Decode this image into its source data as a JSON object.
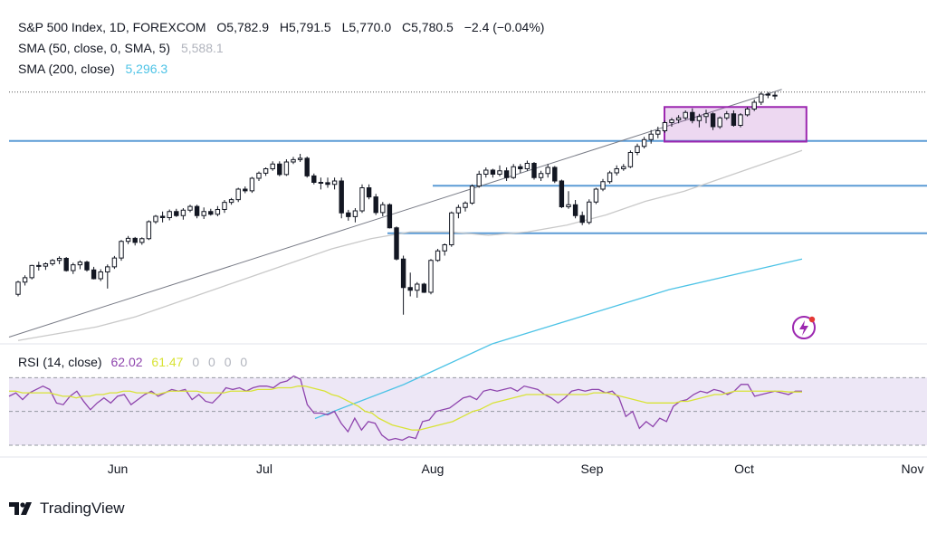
{
  "header": {
    "symbol": "S&P 500 Index, 1D, FOREXCOM",
    "open": "O5,782.9",
    "high": "H5,791.5",
    "low": "L5,770.0",
    "close": "C5,780.5",
    "change": "−2.4 (−0.04%)",
    "sma50_label": "SMA (50, close, 0, SMA, 5)",
    "sma50_value": "5,588.1",
    "sma200_label": "SMA (200, close)",
    "sma200_value": "5,296.3"
  },
  "rsi": {
    "label": "RSI (14, close)",
    "value": "62.02",
    "ma_value": "61.47",
    "extra": [
      "0",
      "0",
      "0",
      "0"
    ]
  },
  "colors": {
    "up": "#ffffff",
    "down": "#131722",
    "sma50": "#c9c9c9",
    "sma200": "#4dc3e6",
    "hlines": "#5b9bd5",
    "box": "#9c27b0",
    "rsi_line": "#8e44ad",
    "rsi_ma": "#d8e336",
    "rsi_band": "#ede7f6"
  },
  "brand": {
    "name": "TradingView",
    "icon": "tradingview-logo-icon"
  },
  "chart_data": {
    "type": "candlestick",
    "timeframe": "1D",
    "x_labels": [
      "Jun",
      "Jul",
      "Aug",
      "Sep",
      "Oct",
      "Nov"
    ],
    "y_range": [
      5050,
      5810
    ],
    "candles": [
      {
        "o": 5196,
        "h": 5236,
        "l": 5190,
        "c": 5232
      },
      {
        "o": 5232,
        "h": 5252,
        "l": 5222,
        "c": 5245
      },
      {
        "o": 5245,
        "h": 5283,
        "l": 5240,
        "c": 5281
      },
      {
        "o": 5281,
        "h": 5292,
        "l": 5266,
        "c": 5279
      },
      {
        "o": 5279,
        "h": 5290,
        "l": 5268,
        "c": 5286
      },
      {
        "o": 5286,
        "h": 5300,
        "l": 5280,
        "c": 5296
      },
      {
        "o": 5296,
        "h": 5308,
        "l": 5285,
        "c": 5302
      },
      {
        "o": 5302,
        "h": 5306,
        "l": 5263,
        "c": 5266
      },
      {
        "o": 5266,
        "h": 5289,
        "l": 5256,
        "c": 5283
      },
      {
        "o": 5283,
        "h": 5296,
        "l": 5270,
        "c": 5291
      },
      {
        "o": 5291,
        "h": 5295,
        "l": 5263,
        "c": 5268
      },
      {
        "o": 5268,
        "h": 5277,
        "l": 5240,
        "c": 5242
      },
      {
        "o": 5242,
        "h": 5270,
        "l": 5235,
        "c": 5262
      },
      {
        "o": 5262,
        "h": 5284,
        "l": 5213,
        "c": 5277
      },
      {
        "o": 5277,
        "h": 5309,
        "l": 5271,
        "c": 5303
      },
      {
        "o": 5303,
        "h": 5356,
        "l": 5295,
        "c": 5352
      },
      {
        "o": 5352,
        "h": 5368,
        "l": 5344,
        "c": 5361
      },
      {
        "o": 5361,
        "h": 5365,
        "l": 5340,
        "c": 5349
      },
      {
        "o": 5349,
        "h": 5364,
        "l": 5342,
        "c": 5360
      },
      {
        "o": 5360,
        "h": 5414,
        "l": 5356,
        "c": 5410
      },
      {
        "o": 5410,
        "h": 5430,
        "l": 5404,
        "c": 5426
      },
      {
        "o": 5426,
        "h": 5440,
        "l": 5408,
        "c": 5422
      },
      {
        "o": 5422,
        "h": 5446,
        "l": 5414,
        "c": 5440
      },
      {
        "o": 5440,
        "h": 5448,
        "l": 5424,
        "c": 5428
      },
      {
        "o": 5428,
        "h": 5450,
        "l": 5416,
        "c": 5444
      },
      {
        "o": 5444,
        "h": 5460,
        "l": 5438,
        "c": 5455
      },
      {
        "o": 5455,
        "h": 5460,
        "l": 5420,
        "c": 5428
      },
      {
        "o": 5428,
        "h": 5452,
        "l": 5418,
        "c": 5440
      },
      {
        "o": 5440,
        "h": 5448,
        "l": 5428,
        "c": 5432
      },
      {
        "o": 5432,
        "h": 5456,
        "l": 5426,
        "c": 5446
      },
      {
        "o": 5446,
        "h": 5474,
        "l": 5436,
        "c": 5467
      },
      {
        "o": 5467,
        "h": 5480,
        "l": 5460,
        "c": 5475
      },
      {
        "o": 5475,
        "h": 5510,
        "l": 5468,
        "c": 5506
      },
      {
        "o": 5506,
        "h": 5514,
        "l": 5494,
        "c": 5501
      },
      {
        "o": 5501,
        "h": 5542,
        "l": 5495,
        "c": 5538
      },
      {
        "o": 5538,
        "h": 5558,
        "l": 5530,
        "c": 5553
      },
      {
        "o": 5553,
        "h": 5570,
        "l": 5545,
        "c": 5566
      },
      {
        "o": 5566,
        "h": 5588,
        "l": 5560,
        "c": 5580
      },
      {
        "o": 5580,
        "h": 5588,
        "l": 5544,
        "c": 5549
      },
      {
        "o": 5549,
        "h": 5594,
        "l": 5545,
        "c": 5586
      },
      {
        "o": 5586,
        "h": 5601,
        "l": 5580,
        "c": 5593
      },
      {
        "o": 5593,
        "h": 5610,
        "l": 5586,
        "c": 5597
      },
      {
        "o": 5597,
        "h": 5602,
        "l": 5540,
        "c": 5545
      },
      {
        "o": 5545,
        "h": 5552,
        "l": 5520,
        "c": 5526
      },
      {
        "o": 5526,
        "h": 5540,
        "l": 5505,
        "c": 5525
      },
      {
        "o": 5525,
        "h": 5540,
        "l": 5510,
        "c": 5520
      },
      {
        "o": 5520,
        "h": 5540,
        "l": 5505,
        "c": 5530
      },
      {
        "o": 5530,
        "h": 5540,
        "l": 5420,
        "c": 5436
      },
      {
        "o": 5436,
        "h": 5445,
        "l": 5413,
        "c": 5425
      },
      {
        "o": 5425,
        "h": 5450,
        "l": 5408,
        "c": 5442
      },
      {
        "o": 5442,
        "h": 5520,
        "l": 5436,
        "c": 5510
      },
      {
        "o": 5510,
        "h": 5520,
        "l": 5476,
        "c": 5483
      },
      {
        "o": 5483,
        "h": 5492,
        "l": 5430,
        "c": 5437
      },
      {
        "o": 5437,
        "h": 5468,
        "l": 5426,
        "c": 5460
      },
      {
        "o": 5460,
        "h": 5464,
        "l": 5390,
        "c": 5392
      },
      {
        "o": 5392,
        "h": 5396,
        "l": 5296,
        "c": 5300
      },
      {
        "o": 5300,
        "h": 5310,
        "l": 5136,
        "c": 5216
      },
      {
        "o": 5216,
        "h": 5260,
        "l": 5190,
        "c": 5208
      },
      {
        "o": 5208,
        "h": 5232,
        "l": 5186,
        "c": 5226
      },
      {
        "o": 5226,
        "h": 5230,
        "l": 5200,
        "c": 5202
      },
      {
        "o": 5202,
        "h": 5300,
        "l": 5196,
        "c": 5296
      },
      {
        "o": 5296,
        "h": 5330,
        "l": 5292,
        "c": 5324
      },
      {
        "o": 5324,
        "h": 5346,
        "l": 5310,
        "c": 5342
      },
      {
        "o": 5342,
        "h": 5440,
        "l": 5336,
        "c": 5436
      },
      {
        "o": 5436,
        "h": 5460,
        "l": 5420,
        "c": 5452
      },
      {
        "o": 5452,
        "h": 5470,
        "l": 5440,
        "c": 5465
      },
      {
        "o": 5465,
        "h": 5520,
        "l": 5460,
        "c": 5515
      },
      {
        "o": 5515,
        "h": 5560,
        "l": 5510,
        "c": 5550
      },
      {
        "o": 5550,
        "h": 5570,
        "l": 5540,
        "c": 5562
      },
      {
        "o": 5562,
        "h": 5566,
        "l": 5540,
        "c": 5550
      },
      {
        "o": 5550,
        "h": 5576,
        "l": 5544,
        "c": 5560
      },
      {
        "o": 5560,
        "h": 5570,
        "l": 5530,
        "c": 5540
      },
      {
        "o": 5540,
        "h": 5580,
        "l": 5536,
        "c": 5572
      },
      {
        "o": 5572,
        "h": 5580,
        "l": 5554,
        "c": 5566
      },
      {
        "o": 5566,
        "h": 5590,
        "l": 5560,
        "c": 5582
      },
      {
        "o": 5582,
        "h": 5586,
        "l": 5534,
        "c": 5540
      },
      {
        "o": 5540,
        "h": 5560,
        "l": 5530,
        "c": 5552
      },
      {
        "o": 5552,
        "h": 5580,
        "l": 5540,
        "c": 5570
      },
      {
        "o": 5570,
        "h": 5574,
        "l": 5524,
        "c": 5530
      },
      {
        "o": 5530,
        "h": 5534,
        "l": 5450,
        "c": 5454
      },
      {
        "o": 5454,
        "h": 5500,
        "l": 5448,
        "c": 5460
      },
      {
        "o": 5460,
        "h": 5474,
        "l": 5420,
        "c": 5428
      },
      {
        "o": 5428,
        "h": 5440,
        "l": 5400,
        "c": 5408
      },
      {
        "o": 5408,
        "h": 5476,
        "l": 5402,
        "c": 5468
      },
      {
        "o": 5468,
        "h": 5510,
        "l": 5462,
        "c": 5506
      },
      {
        "o": 5506,
        "h": 5536,
        "l": 5500,
        "c": 5528
      },
      {
        "o": 5528,
        "h": 5560,
        "l": 5522,
        "c": 5554
      },
      {
        "o": 5554,
        "h": 5576,
        "l": 5546,
        "c": 5566
      },
      {
        "o": 5566,
        "h": 5580,
        "l": 5560,
        "c": 5572
      },
      {
        "o": 5572,
        "h": 5620,
        "l": 5568,
        "c": 5614
      },
      {
        "o": 5614,
        "h": 5640,
        "l": 5606,
        "c": 5632
      },
      {
        "o": 5632,
        "h": 5660,
        "l": 5626,
        "c": 5652
      },
      {
        "o": 5652,
        "h": 5680,
        "l": 5640,
        "c": 5668
      },
      {
        "o": 5668,
        "h": 5690,
        "l": 5656,
        "c": 5678
      },
      {
        "o": 5678,
        "h": 5708,
        "l": 5672,
        "c": 5702
      },
      {
        "o": 5702,
        "h": 5716,
        "l": 5690,
        "c": 5710
      },
      {
        "o": 5710,
        "h": 5724,
        "l": 5700,
        "c": 5716
      },
      {
        "o": 5716,
        "h": 5738,
        "l": 5710,
        "c": 5732
      },
      {
        "o": 5732,
        "h": 5744,
        "l": 5700,
        "c": 5708
      },
      {
        "o": 5708,
        "h": 5728,
        "l": 5688,
        "c": 5720
      },
      {
        "o": 5720,
        "h": 5740,
        "l": 5700,
        "c": 5728
      },
      {
        "o": 5728,
        "h": 5732,
        "l": 5680,
        "c": 5690
      },
      {
        "o": 5690,
        "h": 5720,
        "l": 5684,
        "c": 5716
      },
      {
        "o": 5716,
        "h": 5736,
        "l": 5710,
        "c": 5728
      },
      {
        "o": 5728,
        "h": 5738,
        "l": 5690,
        "c": 5694
      },
      {
        "o": 5694,
        "h": 5730,
        "l": 5688,
        "c": 5725
      },
      {
        "o": 5725,
        "h": 5748,
        "l": 5720,
        "c": 5742
      },
      {
        "o": 5742,
        "h": 5770,
        "l": 5736,
        "c": 5762
      },
      {
        "o": 5762,
        "h": 5792,
        "l": 5754,
        "c": 5786
      },
      {
        "o": 5786,
        "h": 5792,
        "l": 5774,
        "c": 5783
      },
      {
        "o": 5782.9,
        "h": 5791.5,
        "l": 5770.0,
        "c": 5780.5
      }
    ],
    "sma50": [
      5060,
      5080,
      5100,
      5130,
      5170,
      5210,
      5250,
      5290,
      5330,
      5360,
      5380,
      5380,
      5370,
      5380,
      5400,
      5430,
      5470,
      5500,
      5540,
      5580,
      5620
    ],
    "sma200": [
      4830,
      4880,
      4930,
      4990,
      5050,
      5090,
      5130,
      5170,
      5210,
      5240,
      5270,
      5300
    ],
    "horizontal_levels": [
      5648,
      5516,
      5376
    ],
    "trendline": {
      "start": [
        0,
        5070
      ],
      "end": [
        111,
        5800
      ]
    },
    "rectangle": {
      "from_index": 95,
      "to_index": 113,
      "low": 5646,
      "high": 5748
    },
    "last_price_dotted": 5792,
    "rsi_values": [
      59,
      61,
      57,
      61,
      63,
      65,
      63,
      55,
      54,
      59,
      62,
      56,
      51,
      55,
      58,
      55,
      59,
      60,
      54,
      57,
      60,
      62,
      59,
      61,
      63,
      62,
      63,
      57,
      60,
      56,
      55,
      59,
      64,
      63,
      64,
      62,
      64,
      65,
      65,
      64,
      67,
      68,
      71,
      69,
      54,
      49,
      49,
      48,
      50,
      43,
      38,
      46,
      39,
      44,
      43,
      36,
      33,
      34,
      33,
      35,
      34,
      44,
      45,
      50,
      51,
      52,
      55,
      58,
      59,
      57,
      62,
      63,
      62,
      63,
      64,
      62,
      65,
      64,
      63,
      60,
      58,
      55,
      58,
      62,
      63,
      62,
      63,
      63,
      61,
      62,
      58,
      47,
      50,
      40,
      44,
      41,
      46,
      44,
      53,
      56,
      57,
      60,
      62,
      61,
      63,
      62,
      60,
      62,
      66,
      66,
      59,
      60,
      61,
      62,
      61,
      60,
      62,
      62
    ],
    "rsi_ma": [
      62,
      62,
      61,
      61,
      61,
      61,
      61,
      60,
      59,
      59,
      58,
      59,
      59,
      60,
      60,
      61,
      61,
      62,
      62,
      61,
      61,
      61,
      60,
      61,
      62,
      62,
      62,
      62,
      62,
      61,
      61,
      61,
      61,
      62,
      62,
      62,
      62,
      63,
      63,
      63,
      64,
      64,
      64,
      65,
      65,
      64,
      63,
      62,
      60,
      59,
      57,
      55,
      53,
      50,
      49,
      46,
      44,
      42,
      41,
      40,
      39,
      39,
      40,
      41,
      42,
      43,
      44,
      46,
      48,
      50,
      51,
      53,
      55,
      56,
      57,
      58,
      59,
      60,
      60,
      60,
      60,
      60,
      60,
      60,
      60,
      60,
      60,
      61,
      61,
      61,
      60,
      59,
      58,
      57,
      56,
      55,
      55,
      55,
      55,
      55,
      56,
      56,
      57,
      58,
      59,
      60,
      60,
      61,
      62,
      62,
      62,
      62,
      62,
      62,
      62,
      62,
      61.5,
      61.5,
      61.47
    ],
    "rsi_range": [
      30,
      75
    ],
    "rsi_levels": [
      70,
      50,
      30
    ]
  }
}
